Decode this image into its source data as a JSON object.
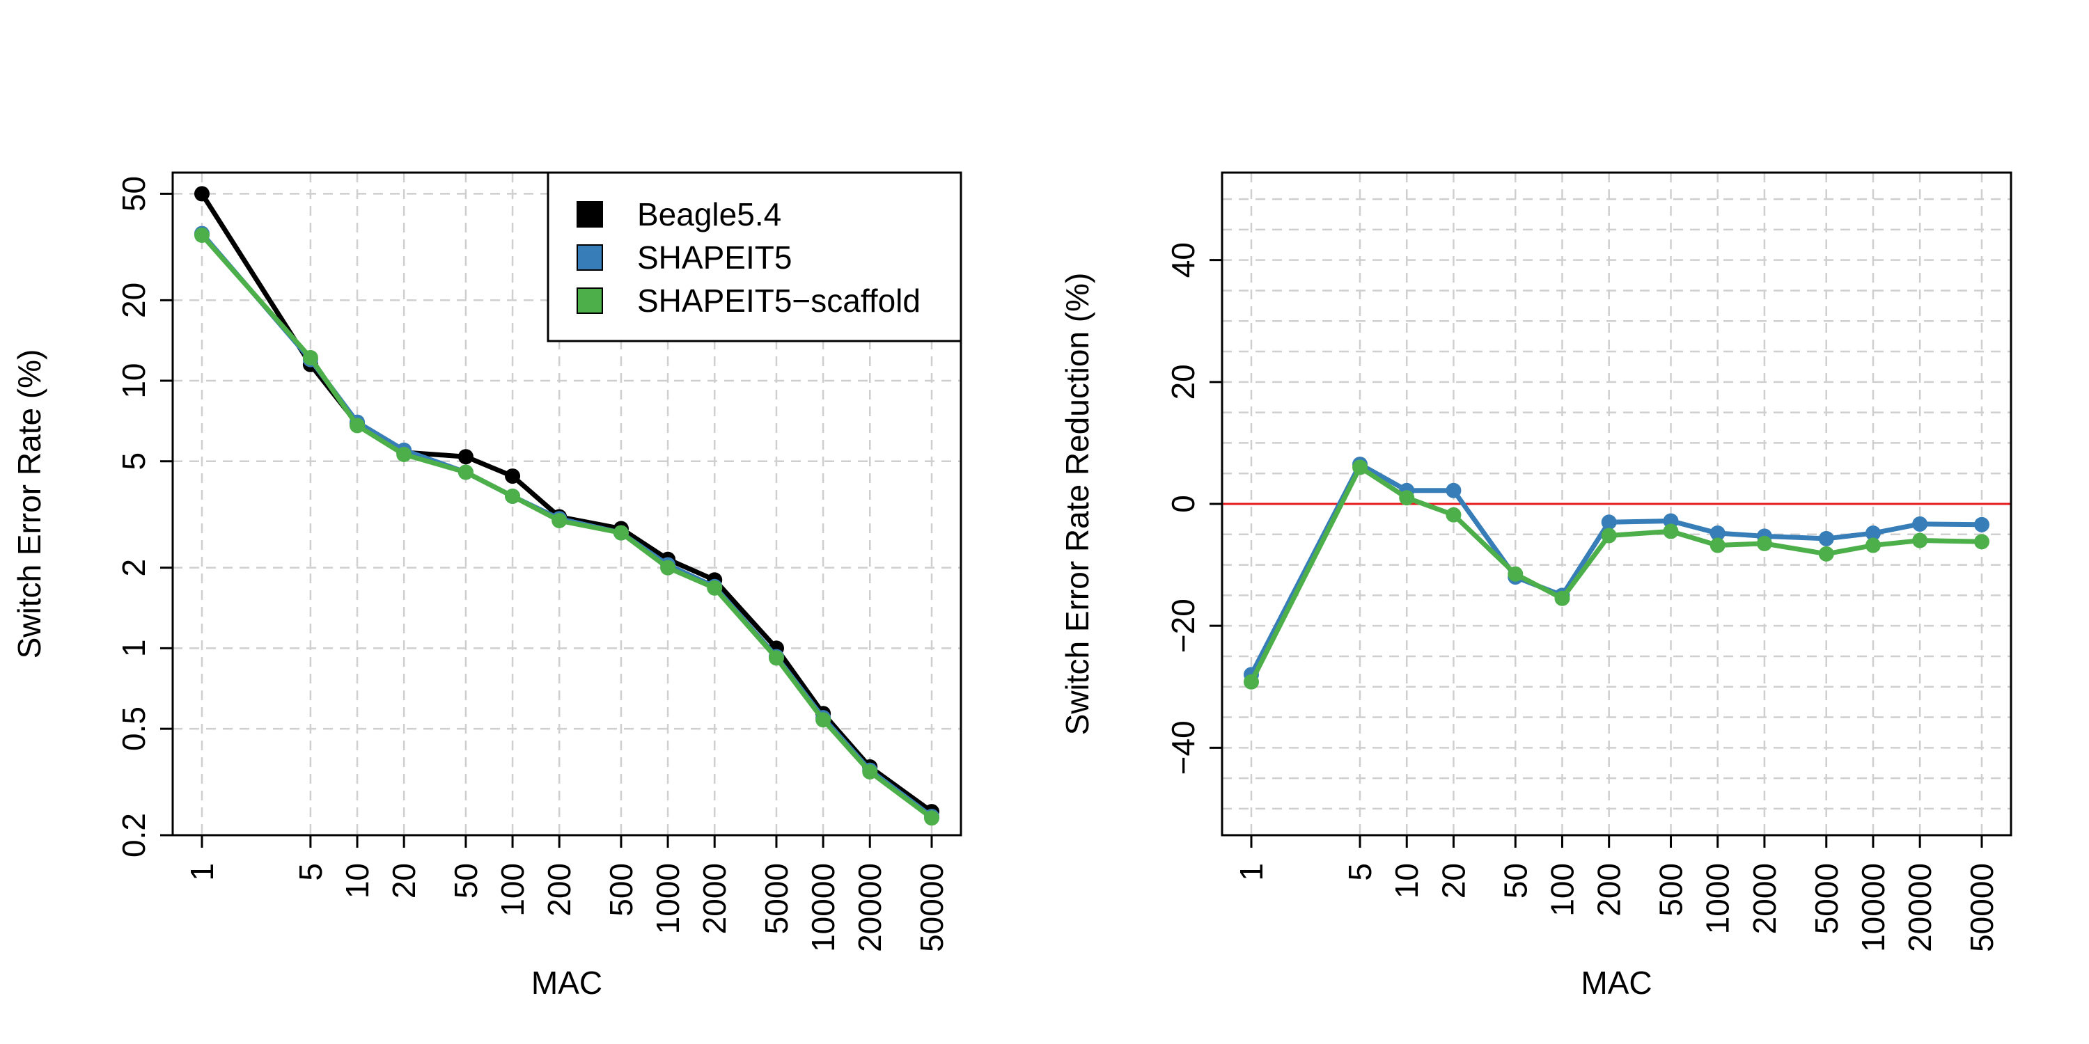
{
  "chart_data": [
    {
      "type": "line",
      "xlabel": "MAC",
      "ylabel": "Switch Error Rate (%)",
      "x_scale": "log",
      "y_scale": "log",
      "categories": [
        1,
        5,
        10,
        20,
        50,
        100,
        200,
        500,
        1000,
        2000,
        5000,
        10000,
        20000,
        50000
      ],
      "x_tick_labels": [
        "1",
        "5",
        "10",
        "20",
        "50",
        "100",
        "200",
        "500",
        "1000",
        "2000",
        "5000",
        "10000",
        "20000",
        "50000"
      ],
      "y_ticks": [
        0.2,
        0.5,
        1,
        2,
        5,
        10,
        20,
        50
      ],
      "y_tick_labels": [
        "0.2",
        "0.5",
        "1",
        "2",
        "5",
        "10",
        "20",
        "50"
      ],
      "ylim": [
        0.2,
        60
      ],
      "grid": true,
      "legend_position": "top-right",
      "series": [
        {
          "name": "Beagle5.4",
          "color": "#000000",
          "values": [
            50,
            11.5,
            6.9,
            5.4,
            5.2,
            4.4,
            3.1,
            2.8,
            2.15,
            1.8,
            1.0,
            0.57,
            0.36,
            0.245
          ]
        },
        {
          "name": "SHAPEIT5",
          "color": "#377eb8",
          "values": [
            35.5,
            12.0,
            7.0,
            5.5,
            4.55,
            3.7,
            3.05,
            2.7,
            2.05,
            1.7,
            0.93,
            0.55,
            0.35,
            0.235
          ]
        },
        {
          "name": "SHAPEIT5−scaffold",
          "color": "#4daf4a",
          "values": [
            35.0,
            12.2,
            6.8,
            5.3,
            4.55,
            3.7,
            3.0,
            2.7,
            2.0,
            1.68,
            0.92,
            0.54,
            0.345,
            0.232
          ]
        }
      ]
    },
    {
      "type": "line",
      "xlabel": "MAC",
      "ylabel": "Switch Error Rate Reduction (%)",
      "x_scale": "log",
      "y_scale": "linear",
      "categories": [
        1,
        5,
        10,
        20,
        50,
        100,
        200,
        500,
        1000,
        2000,
        5000,
        10000,
        20000,
        50000
      ],
      "x_tick_labels": [
        "1",
        "5",
        "10",
        "20",
        "50",
        "100",
        "200",
        "500",
        "1000",
        "2000",
        "5000",
        "10000",
        "20000",
        "50000"
      ],
      "y_ticks": [
        -40,
        -20,
        0,
        20,
        40
      ],
      "y_tick_labels": [
        "−40",
        "−20",
        "0",
        "20",
        "40"
      ],
      "ylim": [
        -50,
        50
      ],
      "grid": true,
      "reference_line": {
        "y": 0,
        "color": "#e41a1c"
      },
      "series": [
        {
          "name": "SHAPEIT5",
          "color": "#377eb8",
          "values": [
            -28.0,
            6.5,
            2.2,
            2.2,
            -12.0,
            -15.0,
            -3.0,
            -2.8,
            -4.8,
            -5.3,
            -5.7,
            -4.8,
            -3.3,
            -3.4
          ]
        },
        {
          "name": "SHAPEIT5−scaffold",
          "color": "#4daf4a",
          "values": [
            -29.2,
            6.0,
            1.0,
            -1.8,
            -11.5,
            -15.5,
            -5.2,
            -4.5,
            -6.8,
            -6.5,
            -8.2,
            -6.8,
            -6.0,
            -6.2
          ]
        }
      ]
    }
  ]
}
